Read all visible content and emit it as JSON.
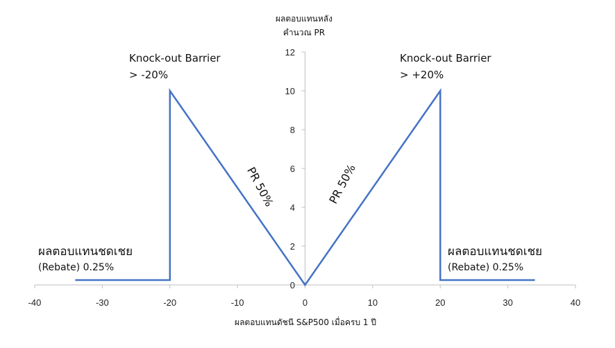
{
  "chart_data": {
    "type": "line",
    "ylabel_line1": "ผลตอบแทนหลัง",
    "ylabel_line2": "คำนวณ PR",
    "xlabel": "ผลตอบแทนดัชนี S&P500 เมื่อครบ 1 ปี",
    "xlim": [
      -40,
      40
    ],
    "ylim": [
      0,
      12
    ],
    "xticks": [
      -40,
      -30,
      -20,
      -10,
      0,
      10,
      20,
      30,
      40
    ],
    "yticks": [
      0,
      2,
      4,
      6,
      8,
      10,
      12
    ],
    "grid": false,
    "line_color": "#4472C4",
    "series": [
      {
        "x": [
          -34,
          -20,
          -20,
          0,
          20,
          20,
          34
        ],
        "y": [
          0.25,
          0.25,
          10,
          0,
          10,
          0.25,
          0.25
        ]
      }
    ],
    "annotations": {
      "left_barrier_line1": "Knock-out Barrier",
      "left_barrier_line2": "> -20%",
      "right_barrier_line1": "Knock-out Barrier",
      "right_barrier_line2": "> +20%",
      "left_rebate_line1": "ผลตอบแทนชดเชย",
      "left_rebate_line2": "(Rebate) 0.25%",
      "right_rebate_line1": "ผลตอบแทนชดเชย",
      "right_rebate_line2": "(Rebate) 0.25%",
      "left_slope": "PR 50%",
      "right_slope": "PR 50%"
    }
  }
}
